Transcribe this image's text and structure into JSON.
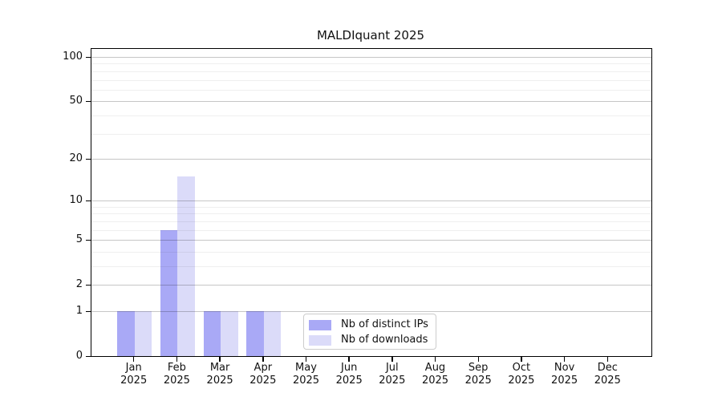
{
  "chart_data": {
    "type": "bar",
    "title": "MALDIquant 2025",
    "year": "2025",
    "categories": [
      "Jan",
      "Feb",
      "Mar",
      "Apr",
      "May",
      "Jun",
      "Jul",
      "Aug",
      "Sep",
      "Oct",
      "Nov",
      "Dec"
    ],
    "series": [
      {
        "name": "Nb of distinct IPs",
        "color": "#a9a9f6",
        "values": [
          1,
          6,
          1,
          1,
          0,
          0,
          0,
          0,
          0,
          0,
          0,
          0
        ]
      },
      {
        "name": "Nb of downloads",
        "color": "#dbdbf9",
        "values": [
          1,
          15,
          1,
          1,
          0,
          0,
          0,
          0,
          0,
          0,
          0,
          0
        ]
      }
    ],
    "y_axis": {
      "scale": "log1p",
      "ticks": [
        0,
        1,
        2,
        5,
        10,
        20,
        50,
        100
      ],
      "minor_gridlines": [
        3,
        4,
        6,
        7,
        8,
        9,
        30,
        40,
        60,
        70,
        80,
        90
      ],
      "max": 100
    },
    "x_axis": {
      "tick_label_format": "month-over-year"
    },
    "grid": true,
    "legend_position": "bottom-center",
    "colors": {
      "major_gridline": "#c6c6c6",
      "minor_gridline": "#efefef",
      "axis_line": "#000000",
      "text": "#111111",
      "background": "#ffffff"
    }
  }
}
